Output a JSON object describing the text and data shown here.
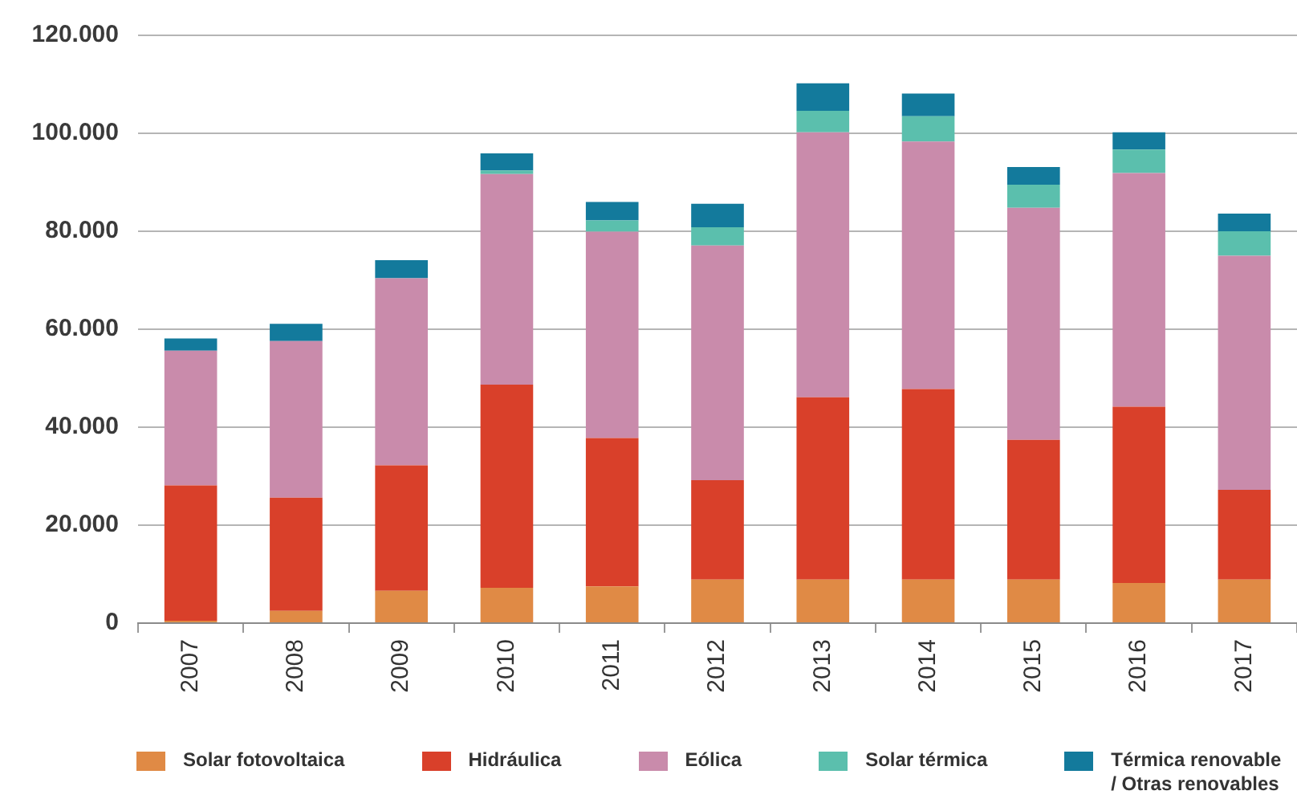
{
  "chart_data": {
    "type": "bar",
    "stacked": true,
    "categories": [
      "2007",
      "2008",
      "2009",
      "2010",
      "2011",
      "2012",
      "2013",
      "2014",
      "2015",
      "2016",
      "2017"
    ],
    "series": [
      {
        "name": "Solar fotovoltaica",
        "color": "#e08a45",
        "values": [
          500,
          2500,
          6600,
          7200,
          7500,
          8900,
          8900,
          8900,
          8900,
          8200,
          8900
        ]
      },
      {
        "name": "Hidráulica",
        "color": "#d9402a",
        "values": [
          27600,
          23100,
          25600,
          41500,
          30300,
          20300,
          37200,
          38900,
          28500,
          36000,
          18300
        ]
      },
      {
        "name": "Eólica",
        "color": "#c98bab",
        "values": [
          27500,
          32000,
          38200,
          43000,
          42100,
          47900,
          54100,
          50500,
          47400,
          47700,
          47800
        ]
      },
      {
        "name": "Solar térmica",
        "color": "#5bbfad",
        "values": [
          null,
          null,
          null,
          700,
          2300,
          3700,
          4400,
          5200,
          4700,
          4800,
          5000
        ]
      },
      {
        "name": "Térmica renovable / Otras renovables",
        "color": "#137a9c",
        "values": [
          2500,
          3500,
          3700,
          3500,
          3800,
          4800,
          5600,
          4600,
          3600,
          3500,
          3600
        ]
      }
    ],
    "ylim": [
      0,
      120000
    ],
    "yticks": [
      0,
      {
        "value": 20000,
        "label": "20.000"
      },
      {
        "value": 40000,
        "label": "40.000"
      },
      {
        "value": 60000,
        "label": "60.000"
      },
      {
        "value": 80000,
        "label": "80.000"
      },
      {
        "value": 100000,
        "label": "100.000"
      },
      {
        "value": 120000,
        "label": "120.000"
      }
    ],
    "grid": "y",
    "legend": "bottom"
  }
}
